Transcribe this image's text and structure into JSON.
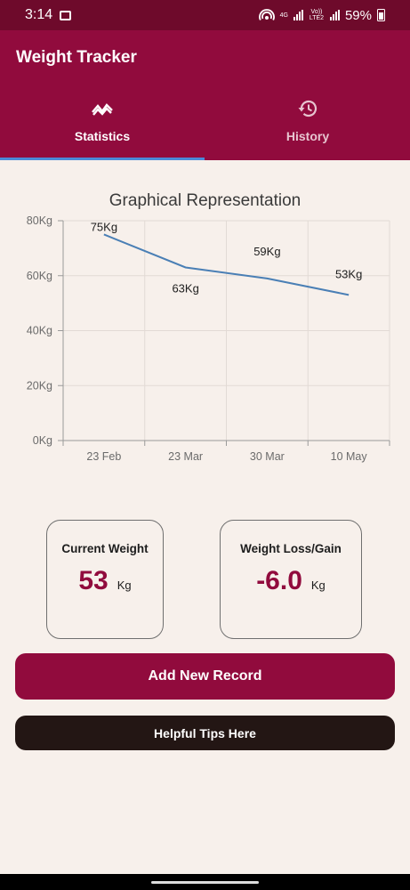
{
  "status_bar": {
    "time": "3:14",
    "network_4g": "4G",
    "volte": "Vo)) LTE2",
    "battery_text": "59%",
    "icons": [
      "gallery-icon",
      "hotspot-icon",
      "signal-icon",
      "battery-icon"
    ]
  },
  "app_bar": {
    "title": "Weight Tracker"
  },
  "tabs": [
    {
      "label": "Statistics",
      "icon": "chart-zigzag-icon",
      "selected": true
    },
    {
      "label": "History",
      "icon": "history-icon",
      "selected": false
    }
  ],
  "chart": {
    "title": "Graphical Representation"
  },
  "chart_data": {
    "type": "line",
    "title": "Graphical Representation",
    "categories": [
      "23 Feb",
      "23 Mar",
      "30 Mar",
      "10 May"
    ],
    "series": [
      {
        "values": [
          75,
          63,
          59,
          53
        ],
        "labels": [
          "75Kg",
          "63Kg",
          "59Kg",
          "53Kg"
        ]
      }
    ],
    "yticks": [
      0,
      20,
      40,
      60,
      80
    ],
    "ytick_labels": [
      "0Kg",
      "20Kg",
      "40Kg",
      "60Kg",
      "80Kg"
    ],
    "ylim": [
      0,
      80
    ],
    "grid": true,
    "line_color": "#4a7fb5"
  },
  "cards": {
    "current": {
      "label": "Current Weight",
      "value": "53",
      "unit": "Kg"
    },
    "change": {
      "label": "Weight Loss/Gain",
      "value": "-6.0",
      "unit": "Kg"
    }
  },
  "buttons": {
    "add_record": "Add New Record",
    "tips": "Helpful Tips Here"
  },
  "colors": {
    "status_bar": "#6e0a2b",
    "primary": "#910b3d",
    "indicator": "#4a8ad8",
    "background": "#f7f0eb",
    "dark_button": "#231614"
  }
}
